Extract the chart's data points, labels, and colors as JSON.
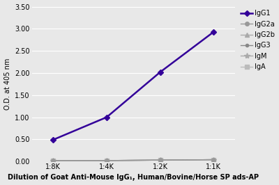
{
  "x_labels": [
    "1:8K",
    "1:4K",
    "1:2K",
    "1:1K"
  ],
  "x_positions": [
    0,
    1,
    2,
    3
  ],
  "series": [
    {
      "name": "IgG1",
      "values": [
        0.49,
        1.0,
        2.02,
        2.93
      ],
      "color": "#330099",
      "marker": "D",
      "marker_size": 4,
      "linewidth": 1.8,
      "zorder": 5
    },
    {
      "name": "IgG2a",
      "values": [
        0.02,
        0.02,
        0.03,
        0.04
      ],
      "color": "#999999",
      "marker": "o",
      "marker_size": 4,
      "linewidth": 1.0,
      "zorder": 4
    },
    {
      "name": "IgG2b",
      "values": [
        0.02,
        0.02,
        0.03,
        0.04
      ],
      "color": "#aaaaaa",
      "marker": "^",
      "marker_size": 4,
      "linewidth": 1.0,
      "zorder": 3
    },
    {
      "name": "IgG3",
      "values": [
        0.02,
        0.02,
        0.03,
        0.04
      ],
      "color": "#888888",
      "marker": "o",
      "marker_size": 3,
      "linewidth": 1.0,
      "zorder": 3
    },
    {
      "name": "IgM",
      "values": [
        0.02,
        0.02,
        0.03,
        0.04
      ],
      "color": "#aaaaaa",
      "marker": "*",
      "marker_size": 6,
      "linewidth": 1.0,
      "zorder": 2
    },
    {
      "name": "IgA",
      "values": [
        0.02,
        0.02,
        0.03,
        0.04
      ],
      "color": "#bbbbbb",
      "marker": "s",
      "marker_size": 4,
      "linewidth": 1.0,
      "zorder": 2
    }
  ],
  "ylabel": "O.D. at 405 nm",
  "xlabel": "Dilution of Goat Anti-Mouse IgG₁, Human/Bovine/Horse SP ads-AP",
  "ylim": [
    0.0,
    3.5
  ],
  "yticks": [
    0.0,
    0.5,
    1.0,
    1.5,
    2.0,
    2.5,
    3.0,
    3.5
  ],
  "plot_bgcolor": "#e8e8e8",
  "fig_bgcolor": "#e8e8e8",
  "grid_color": "#ffffff",
  "ylabel_fontsize": 7,
  "xlabel_fontsize": 7,
  "legend_fontsize": 7,
  "tick_fontsize": 7
}
